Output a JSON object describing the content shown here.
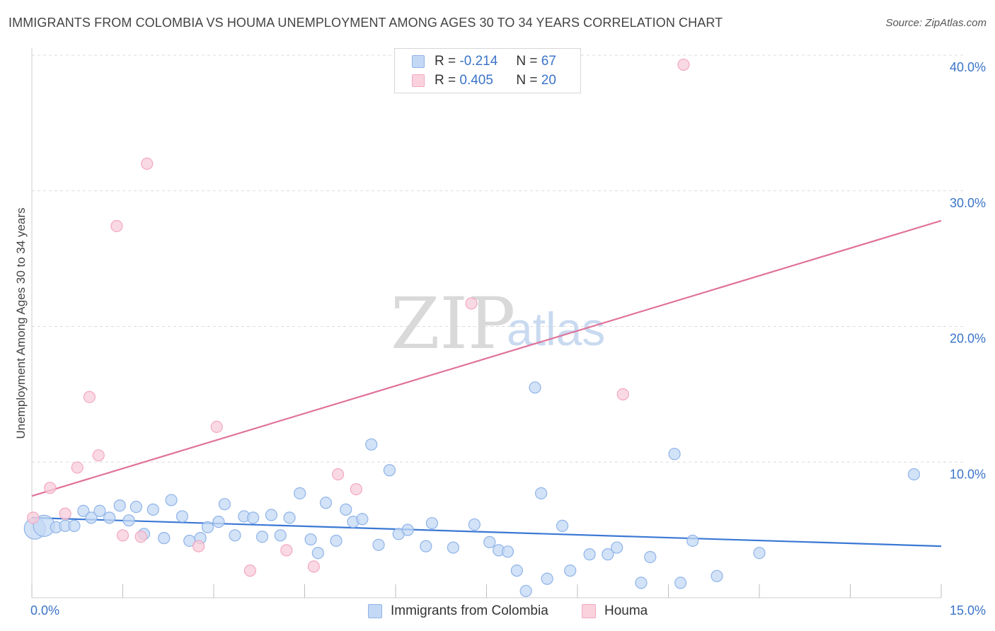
{
  "title": "IMMIGRANTS FROM COLOMBIA VS HOUMA UNEMPLOYMENT AMONG AGES 30 TO 34 YEARS CORRELATION CHART",
  "source": "Source: ZipAtlas.com",
  "watermark": {
    "zip": "ZIP",
    "atlas": "atlas"
  },
  "legend": {
    "r_label": "R =",
    "n_label": "N =",
    "rows": [
      {
        "r": "-0.214",
        "n": "67",
        "color": "#8fb4e8"
      },
      {
        "r": "0.405",
        "n": "20",
        "color": "#f3a8c0"
      }
    ]
  },
  "bottom_legend": [
    {
      "label": "Immigrants from Colombia",
      "color": "#8fb4e8"
    },
    {
      "label": "Houma",
      "color": "#f3a8c0"
    }
  ],
  "chart_data": {
    "type": "scatter",
    "xlabel": "",
    "ylabel": "Unemployment Among Ages 30 to 34 years",
    "xlim": [
      0,
      15
    ],
    "ylim": [
      0,
      40
    ],
    "x_tick_labels": [
      "0.0%",
      "15.0%"
    ],
    "y_ticks": [
      10,
      20,
      30,
      40
    ],
    "y_tick_labels": [
      "10.0%",
      "20.0%",
      "30.0%",
      "40.0%"
    ],
    "grid": true,
    "series": [
      {
        "name": "Immigrants from Colombia",
        "color": "#3a78d4",
        "fill": "#c3d8f4",
        "trend": {
          "x": [
            0,
            15
          ],
          "y": [
            5.9,
            3.8
          ]
        },
        "points": [
          {
            "x": 0.05,
            "y": 5.1,
            "big": true
          },
          {
            "x": 0.2,
            "y": 5.3,
            "big": true
          },
          {
            "x": 0.4,
            "y": 5.2
          },
          {
            "x": 0.55,
            "y": 5.3
          },
          {
            "x": 0.7,
            "y": 5.3
          },
          {
            "x": 0.85,
            "y": 6.4
          },
          {
            "x": 0.98,
            "y": 5.9
          },
          {
            "x": 1.12,
            "y": 6.4
          },
          {
            "x": 1.28,
            "y": 5.9
          },
          {
            "x": 1.45,
            "y": 6.8
          },
          {
            "x": 1.6,
            "y": 5.7
          },
          {
            "x": 1.72,
            "y": 6.7
          },
          {
            "x": 1.85,
            "y": 4.7
          },
          {
            "x": 2.0,
            "y": 6.5
          },
          {
            "x": 2.18,
            "y": 4.4
          },
          {
            "x": 2.3,
            "y": 7.2
          },
          {
            "x": 2.48,
            "y": 6.0
          },
          {
            "x": 2.6,
            "y": 4.2
          },
          {
            "x": 2.78,
            "y": 4.4
          },
          {
            "x": 2.9,
            "y": 5.2
          },
          {
            "x": 3.08,
            "y": 5.6
          },
          {
            "x": 3.18,
            "y": 6.9
          },
          {
            "x": 3.35,
            "y": 4.6
          },
          {
            "x": 3.5,
            "y": 6.0
          },
          {
            "x": 3.65,
            "y": 5.9
          },
          {
            "x": 3.8,
            "y": 4.5
          },
          {
            "x": 3.95,
            "y": 6.1
          },
          {
            "x": 4.1,
            "y": 4.6
          },
          {
            "x": 4.25,
            "y": 5.9
          },
          {
            "x": 4.42,
            "y": 7.7
          },
          {
            "x": 4.6,
            "y": 4.3
          },
          {
            "x": 4.72,
            "y": 3.3
          },
          {
            "x": 4.85,
            "y": 7.0
          },
          {
            "x": 5.02,
            "y": 4.2
          },
          {
            "x": 5.18,
            "y": 6.5
          },
          {
            "x": 5.3,
            "y": 5.6
          },
          {
            "x": 5.45,
            "y": 5.8
          },
          {
            "x": 5.6,
            "y": 11.3
          },
          {
            "x": 5.72,
            "y": 3.9
          },
          {
            "x": 5.9,
            "y": 9.4
          },
          {
            "x": 6.05,
            "y": 4.7
          },
          {
            "x": 6.2,
            "y": 5.0
          },
          {
            "x": 6.5,
            "y": 3.8
          },
          {
            "x": 6.6,
            "y": 5.5
          },
          {
            "x": 6.95,
            "y": 3.7
          },
          {
            "x": 7.3,
            "y": 5.4
          },
          {
            "x": 7.55,
            "y": 4.1
          },
          {
            "x": 7.7,
            "y": 3.5
          },
          {
            "x": 7.85,
            "y": 3.4
          },
          {
            "x": 8.0,
            "y": 2.0
          },
          {
            "x": 8.15,
            "y": 0.5
          },
          {
            "x": 8.3,
            "y": 15.5
          },
          {
            "x": 8.4,
            "y": 7.7
          },
          {
            "x": 8.5,
            "y": 1.4
          },
          {
            "x": 8.75,
            "y": 5.3
          },
          {
            "x": 8.88,
            "y": 2.0
          },
          {
            "x": 9.2,
            "y": 3.2
          },
          {
            "x": 9.5,
            "y": 3.2
          },
          {
            "x": 9.65,
            "y": 3.7
          },
          {
            "x": 10.05,
            "y": 1.1
          },
          {
            "x": 10.2,
            "y": 3.0
          },
          {
            "x": 10.6,
            "y": 10.6
          },
          {
            "x": 10.7,
            "y": 1.1
          },
          {
            "x": 10.9,
            "y": 4.2
          },
          {
            "x": 11.3,
            "y": 1.6
          },
          {
            "x": 12.0,
            "y": 3.3
          },
          {
            "x": 14.55,
            "y": 9.1
          }
        ]
      },
      {
        "name": "Houma",
        "color": "#e0729b",
        "fill": "#f7ccd9",
        "trend": {
          "x": [
            0,
            15
          ],
          "y": [
            7.5,
            27.8
          ]
        },
        "points": [
          {
            "x": 0.02,
            "y": 5.9
          },
          {
            "x": 0.3,
            "y": 8.1
          },
          {
            "x": 0.55,
            "y": 6.2
          },
          {
            "x": 0.75,
            "y": 9.6
          },
          {
            "x": 0.95,
            "y": 14.8
          },
          {
            "x": 1.1,
            "y": 10.5
          },
          {
            "x": 1.4,
            "y": 27.4
          },
          {
            "x": 1.5,
            "y": 4.6
          },
          {
            "x": 1.8,
            "y": 4.5
          },
          {
            "x": 1.9,
            "y": 32.0
          },
          {
            "x": 2.75,
            "y": 3.8
          },
          {
            "x": 3.05,
            "y": 12.6
          },
          {
            "x": 3.6,
            "y": 2.0
          },
          {
            "x": 4.2,
            "y": 3.5
          },
          {
            "x": 4.65,
            "y": 2.3
          },
          {
            "x": 5.05,
            "y": 9.1
          },
          {
            "x": 5.35,
            "y": 8.0
          },
          {
            "x": 7.25,
            "y": 21.7
          },
          {
            "x": 9.75,
            "y": 15.0
          },
          {
            "x": 10.75,
            "y": 39.3
          }
        ]
      }
    ]
  }
}
